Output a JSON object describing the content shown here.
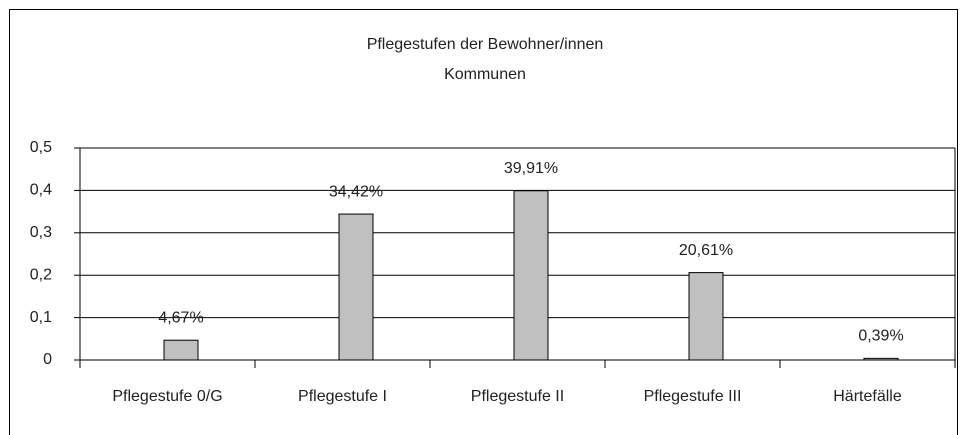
{
  "chart_data": {
    "type": "bar",
    "title": "Pflegestufen der Bewohner/innen",
    "subtitle": "Kommunen",
    "categories": [
      "Pflegestufe 0/G",
      "Pflegestufe I",
      "Pflegestufe II",
      "Pflegestufe III",
      "Härtefälle"
    ],
    "values": [
      0.0467,
      0.3442,
      0.3991,
      0.2061,
      0.0039
    ],
    "value_labels": [
      "4,67%",
      "34,42%",
      "39,91%",
      "20,61%",
      "0,39%"
    ],
    "color": "#c0c0c0",
    "ylim": [
      0,
      0.5
    ],
    "yticks": [
      0,
      {
        "value": 0.1,
        "label": "0,1"
      },
      {
        "value": 0.2,
        "label": "0,2"
      },
      {
        "value": 0.3,
        "label": "0,3"
      },
      {
        "value": 0.4,
        "label": "0,4"
      },
      {
        "value": 0.5,
        "label": "0,5"
      }
    ],
    "grid": true
  }
}
